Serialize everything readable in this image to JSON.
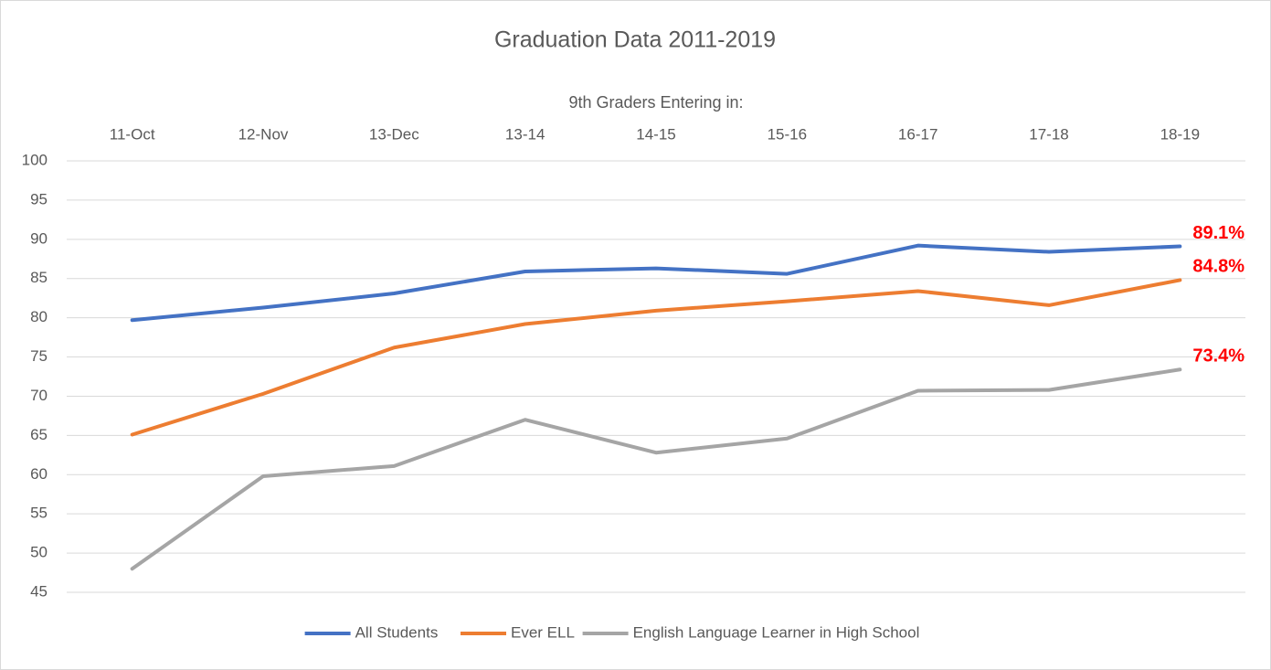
{
  "chart_data": {
    "type": "line",
    "title": "Graduation Data 2011-2019",
    "xlabel": "9th Graders Entering in:",
    "categories": [
      "11-Oct",
      "12-Nov",
      "13-Dec",
      "13-14",
      "14-15",
      "15-16",
      "16-17",
      "17-18",
      "18-19"
    ],
    "series": [
      {
        "name": "All Students",
        "color": "#4472c4",
        "values": [
          79.7,
          81.3,
          83.1,
          85.9,
          86.3,
          85.6,
          89.2,
          88.4,
          89.1
        ],
        "value_labels": [
          null,
          null,
          null,
          null,
          null,
          null,
          null,
          null,
          "89.1%"
        ]
      },
      {
        "name": "Ever ELL",
        "color": "#ed7d31",
        "values": [
          65.1,
          70.3,
          76.2,
          79.2,
          80.9,
          82.1,
          83.4,
          81.6,
          84.8
        ],
        "value_labels": [
          null,
          null,
          null,
          null,
          null,
          null,
          null,
          null,
          "84.8%"
        ]
      },
      {
        "name": "English Language Learner in High School",
        "color": "#a5a5a5",
        "values": [
          48.0,
          59.8,
          61.1,
          67.0,
          62.8,
          64.6,
          70.7,
          70.8,
          73.4
        ],
        "value_labels": [
          null,
          null,
          null,
          null,
          null,
          null,
          null,
          null,
          "73.4%"
        ]
      }
    ],
    "value_label_color": "#ff0000",
    "ylim": [
      45,
      100
    ],
    "yticks": [
      45,
      50,
      55,
      60,
      65,
      70,
      75,
      80,
      85,
      90,
      95,
      100
    ],
    "grid": true,
    "legend": "bottom"
  }
}
